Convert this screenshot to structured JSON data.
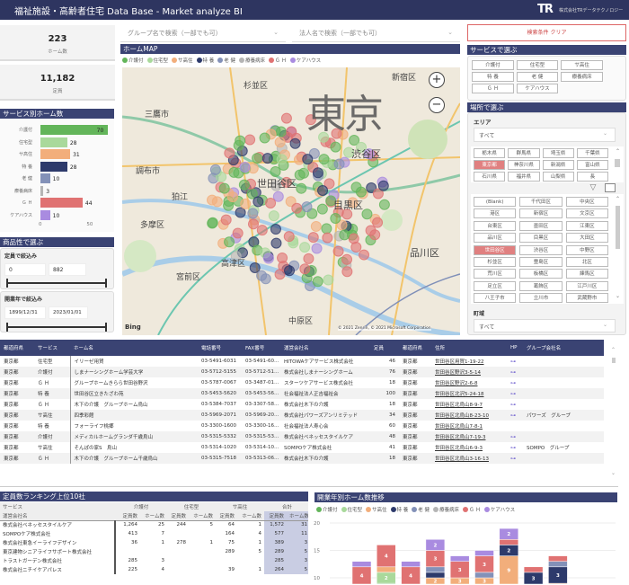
{
  "header": {
    "title": "福祉施設・高齢者住宅 Data Base - Market analyze BI",
    "logo": "TR",
    "company": "株式会社TRデータテクノロジー"
  },
  "kpis": [
    {
      "value": "223",
      "label": "ホーム数"
    },
    {
      "value": "11,182",
      "label": "定員"
    }
  ],
  "service_chart": {
    "title": "サービス別ホーム数",
    "type": "bar",
    "categories": [
      "介護付",
      "住宅型",
      "サ高住",
      "特 養",
      "老 健",
      "療養病床",
      "Ｇ Ｈ",
      "ケアハウス"
    ],
    "values": [
      70,
      28,
      31,
      28,
      10,
      3,
      44,
      10
    ],
    "xticks": [
      "0",
      "50"
    ],
    "xlim": [
      0,
      75
    ],
    "colors": [
      "#63b55a",
      "#a9d99b",
      "#f2ae7b",
      "#2d3a6b",
      "#8391b8",
      "#b5b5b5",
      "#e07272",
      "#a98be0"
    ]
  },
  "filters": {
    "title": "商品性で選ぶ",
    "capacity": {
      "label": "定員で絞込み",
      "min": "0",
      "max": "882"
    },
    "opening": {
      "label": "開業年で絞込み",
      "min": "1899/12/31",
      "max": "2023/01/01"
    }
  },
  "search": {
    "group_placeholder": "グループ名で検索（一部でも可）",
    "corp_placeholder": "法人名で検索（一部でも可）",
    "clear_label": "検索条件 クリア"
  },
  "map": {
    "title": "ホームMAP",
    "legend": [
      "介護付",
      "住宅型",
      "サ高住",
      "特 養",
      "老 健",
      "療養病床",
      "Ｇ Ｈ",
      "ケアハウス"
    ],
    "big_label": "東京",
    "places": [
      "杉並区",
      "新宿区",
      "三鷹市",
      "渋谷区",
      "調布市",
      "世田谷区",
      "狛江",
      "目黒区",
      "多摩区",
      "高津区",
      "宮前区",
      "中原区",
      "品川区"
    ],
    "copyright": "© 2021 Zenrin, © 2021 Microsoft Corporation",
    "bing": "Bing",
    "zoom_in": "+",
    "zoom_out": "−"
  },
  "services": {
    "title": "サービスで選ぶ",
    "items": [
      "介護付",
      "住宅型",
      "サ高住",
      "特 養",
      "老 健",
      "療養病床",
      "Ｇ Ｈ",
      "ケアハウス"
    ]
  },
  "location": {
    "title": "場所で選ぶ",
    "area_label": "エリア",
    "area_value": "すべて",
    "prefectures": [
      "栃木県",
      "群馬県",
      "埼玉県",
      "千葉県",
      "東京都",
      "神奈川県",
      "新潟県",
      "富山県",
      "石川県",
      "福井県",
      "山梨県",
      "長"
    ],
    "selected_prefecture": "東京都",
    "wards": [
      "(Blank)",
      "千代田区",
      "中央区",
      "港区",
      "新宿区",
      "文京区",
      "台東区",
      "墨田区",
      "江東区",
      "品川区",
      "目黒区",
      "大田区",
      "世田谷区",
      "渋谷区",
      "中野区",
      "杉並区",
      "豊島区",
      "北区",
      "荒川区",
      "板橋区",
      "練馬区",
      "足立区",
      "葛飾区",
      "江戸川区",
      "八王子市",
      "立川市",
      "武蔵野市"
    ],
    "selected_ward": "世田谷区",
    "town_label": "町域",
    "town_value": "すべて"
  },
  "table": {
    "columns": [
      "都道府県",
      "サービス",
      "ホーム名",
      "電話番号",
      "FAX番号",
      "運営会社名",
      "定員",
      "都道府県",
      "住所",
      "HP",
      "グループ会社名"
    ],
    "rows": [
      [
        "東京都",
        "住宅型",
        "イリーゼ用賀",
        "03-5491-6031",
        "03-5491-60…",
        "HITOWAケアサービス株式会社",
        "46",
        "東京都",
        "世田谷区用賀1-19-22",
        "link",
        ""
      ],
      [
        "東京都",
        "介護付",
        "しまナーシングホーム学芸大学",
        "03-5712-5155",
        "03-5712-51…",
        "株式会社しまナーシングホーム",
        "76",
        "東京都",
        "世田谷区野沢3-5-14",
        "link",
        ""
      ],
      [
        "東京都",
        "Ｇ Ｈ",
        "グループホームきらら世田谷野沢",
        "03-5787-0067",
        "03-3487-01…",
        "スターツケアサービス株式会社",
        "18",
        "東京都",
        "世田谷区野沢2-6-8",
        "link",
        ""
      ],
      [
        "東京都",
        "特 養",
        "世田谷区立きたざわ苑",
        "03-5453-5620",
        "03-5453-56…",
        "社会福祉法人正吉福祉会",
        "100",
        "東京都",
        "世田谷区北沢5-24-18",
        "link",
        ""
      ],
      [
        "東京都",
        "Ｇ Ｈ",
        "木下の介護　グループホーム烏山",
        "03-5384-7037",
        "03-3307-58…",
        "株式会社木下の介護",
        "18",
        "東京都",
        "世田谷区北烏山8-9-7",
        "link",
        ""
      ],
      [
        "東京都",
        "サ高住",
        "四季彩館",
        "03-5969-2071",
        "03-5969-20…",
        "株式会社パワーズアンリミテッド",
        "34",
        "東京都",
        "世田谷区北烏山8-23-10",
        "link",
        "パワーズ　グループ"
      ],
      [
        "東京都",
        "特 養",
        "フォーライフ桃郷",
        "03-3300-1600",
        "03-3300-16…",
        "社会福祉法人寿心会",
        "60",
        "東京都",
        "世田谷区北烏山7-8-1",
        "",
        ""
      ],
      [
        "東京都",
        "介護付",
        "メディカルホームグランダ千歳烏山",
        "03-5315-5332",
        "03-5315-53…",
        "株式会社ベネッセスタイルケア",
        "48",
        "東京都",
        "世田谷区北烏山7-19-3",
        "link",
        ""
      ],
      [
        "東京都",
        "サ高住",
        "そんぽの家S　烏山",
        "03-5314-1020",
        "03-5314-10…",
        "SOMPOケア株式会社",
        "41",
        "東京都",
        "世田谷区北烏山6-9-3",
        "link",
        "SOMPO　グループ"
      ],
      [
        "東京都",
        "Ｇ Ｈ",
        "木下の介護　グループホーム千歳烏山",
        "03-5315-7518",
        "03-5313-06…",
        "株式会社木下の介護",
        "18",
        "東京都",
        "世田谷区北烏山3-16-13",
        "link",
        ""
      ]
    ]
  },
  "ranking": {
    "title": "定員数ランキング上位10社",
    "row_header_1": "サービス",
    "row_header_2": "運営会社名",
    "groups": [
      "介護付",
      "住宅型",
      "サ高住",
      "合計"
    ],
    "sub": [
      "定員数",
      "ホーム数"
    ],
    "rows": [
      [
        "株式会社ベネッセスタイルケア",
        "1,264",
        "25",
        "244",
        "5",
        "64",
        "1",
        "1,572",
        "31"
      ],
      [
        "SOMPOケア株式会社",
        "413",
        "7",
        "",
        "",
        "164",
        "4",
        "577",
        "11"
      ],
      [
        "株式会社東急イーライフデザイン",
        "36",
        "1",
        "278",
        "1",
        "75",
        "1",
        "389",
        "3"
      ],
      [
        "東京建物シニアライフサポート株式会社",
        "",
        "",
        "",
        "",
        "289",
        "5",
        "289",
        "5"
      ],
      [
        "トラストガーデン株式会社",
        "285",
        "3",
        "",
        "",
        "",
        "",
        "285",
        "3"
      ],
      [
        "株式会社ニチイケアパレス",
        "225",
        "4",
        "",
        "",
        "39",
        "1",
        "264",
        "5"
      ]
    ]
  },
  "chart_data": {
    "type": "bar",
    "stacked": true,
    "title": "開業年別ホーム数推移",
    "series_names": [
      "介護付",
      "住宅型",
      "サ高住",
      "特 養",
      "老 健",
      "療養病床",
      "Ｇ Ｈ",
      "ケアハウス"
    ],
    "colors": [
      "#63b55a",
      "#a9d99b",
      "#f2ae7b",
      "#2d3a6b",
      "#8391b8",
      "#b5b5b5",
      "#e07272",
      "#a98be0"
    ],
    "yticks": [
      10,
      15,
      20
    ],
    "ylim": [
      0,
      20
    ],
    "grid": true,
    "legend": "top-left",
    "stacks": [
      [
        4,
        1,
        2,
        1,
        0,
        0,
        4,
        1
      ],
      [
        9,
        2,
        1,
        0,
        0,
        0,
        4,
        0
      ],
      [
        6,
        0,
        2,
        0,
        0,
        0,
        4,
        1
      ],
      [
        6,
        2,
        2,
        1,
        1,
        0,
        3,
        2
      ],
      [
        7,
        0,
        3,
        0,
        0,
        0,
        3,
        1
      ],
      [
        7,
        0,
        3,
        0,
        1,
        0,
        3,
        1
      ],
      [
        5,
        0,
        9,
        2,
        0,
        0,
        1,
        2
      ],
      [
        5,
        0,
        3,
        3,
        0,
        0,
        1,
        0
      ],
      [
        6,
        0,
        3,
        3,
        1,
        0,
        1,
        0
      ]
    ]
  }
}
